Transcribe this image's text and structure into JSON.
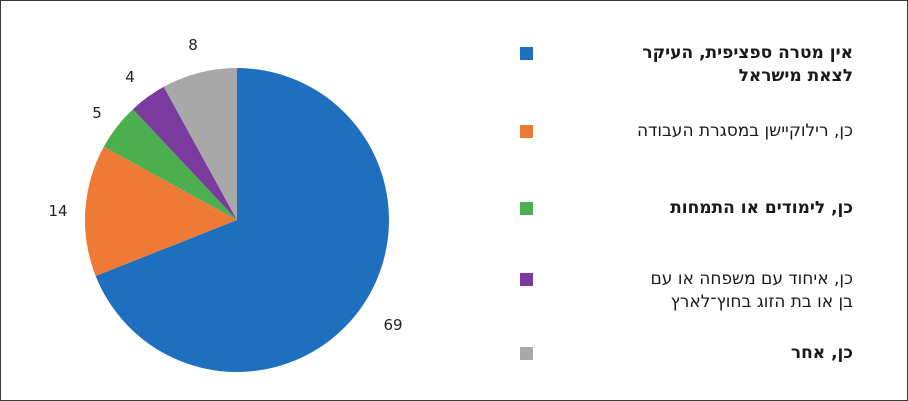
{
  "chart_data": {
    "type": "pie",
    "categories": [
      "אין מטרה ספציפית, העיקר לצאת מישראל",
      "כן, רילוקיישן במסגרת העבודה",
      "כן, לימודים או התמחות",
      "כן, איחוד עם משפחה או עם בן או בת הזוג בחוץ־לארץ",
      "כן, אחר"
    ],
    "values": [
      69,
      14,
      5,
      4,
      8
    ],
    "colors": [
      "#1f6fbf",
      "#ef7a35",
      "#4caf4f",
      "#7a3a9e",
      "#a8a8a8"
    ],
    "legend_position": "right"
  },
  "legend": {
    "items": [
      {
        "label": "אין מטרה ספציפית, העיקר\nלצאת מישראל",
        "color": "#1f6fbf",
        "bold": true
      },
      {
        "label": "כן, רילוקיישן במסגרת העבודה",
        "color": "#ef7a35",
        "bold": false
      },
      {
        "label": "כן, לימודים או התמחות",
        "color": "#4caf4f",
        "bold": true
      },
      {
        "label": "כן, איחוד עם משפחה או עם\nבן או בת הזוג בחוץ־לארץ",
        "color": "#7a3a9e",
        "bold": false
      },
      {
        "label": "כן, אחר",
        "color": "#a8a8a8",
        "bold": true
      }
    ]
  },
  "data_labels": [
    "69",
    "14",
    "5",
    "4",
    "8"
  ]
}
